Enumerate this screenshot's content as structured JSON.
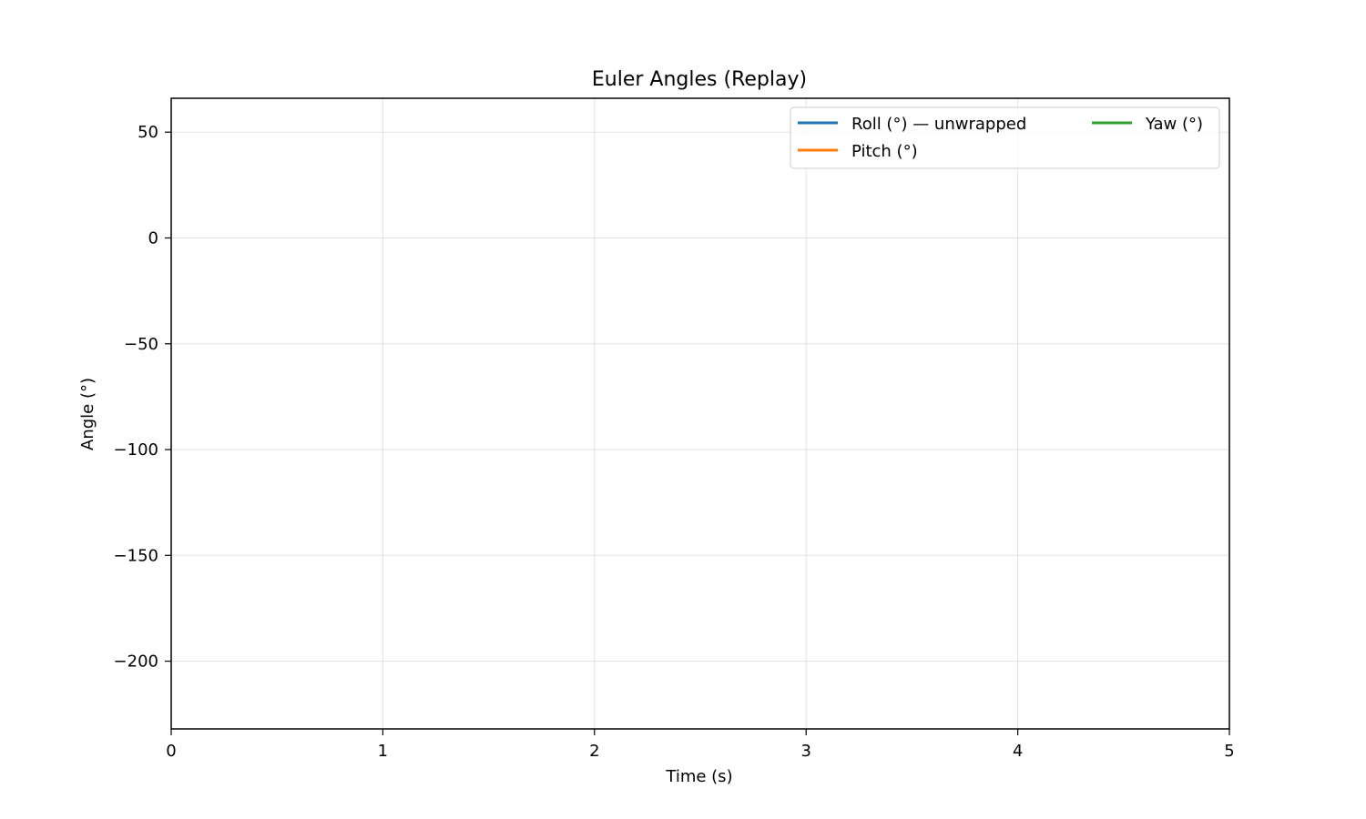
{
  "chart_data": {
    "type": "line",
    "title": "Euler Angles (Replay)",
    "xlabel": "Time (s)",
    "ylabel": "Angle (°)",
    "xlim": [
      0,
      5
    ],
    "ylim": [
      -232,
      66
    ],
    "x_ticks": [
      0,
      1,
      2,
      3,
      4,
      5
    ],
    "x_tick_labels": [
      "0",
      "1",
      "2",
      "3",
      "4",
      "5"
    ],
    "y_ticks": [
      50,
      0,
      -50,
      -100,
      -150,
      -200
    ],
    "y_tick_labels": [
      "50",
      "0",
      "−50",
      "−100",
      "−150",
      "−200"
    ],
    "grid": true,
    "legend": {
      "position": "top-right",
      "columns": 2
    },
    "series": [
      {
        "name": "Roll (°) — unwrapped",
        "color": "#1f77b4",
        "x": [],
        "y": []
      },
      {
        "name": "Pitch (°)",
        "color": "#ff7f0e",
        "x": [],
        "y": []
      },
      {
        "name": "Yaw (°)",
        "color": "#2ca02c",
        "x": [],
        "y": []
      }
    ]
  }
}
